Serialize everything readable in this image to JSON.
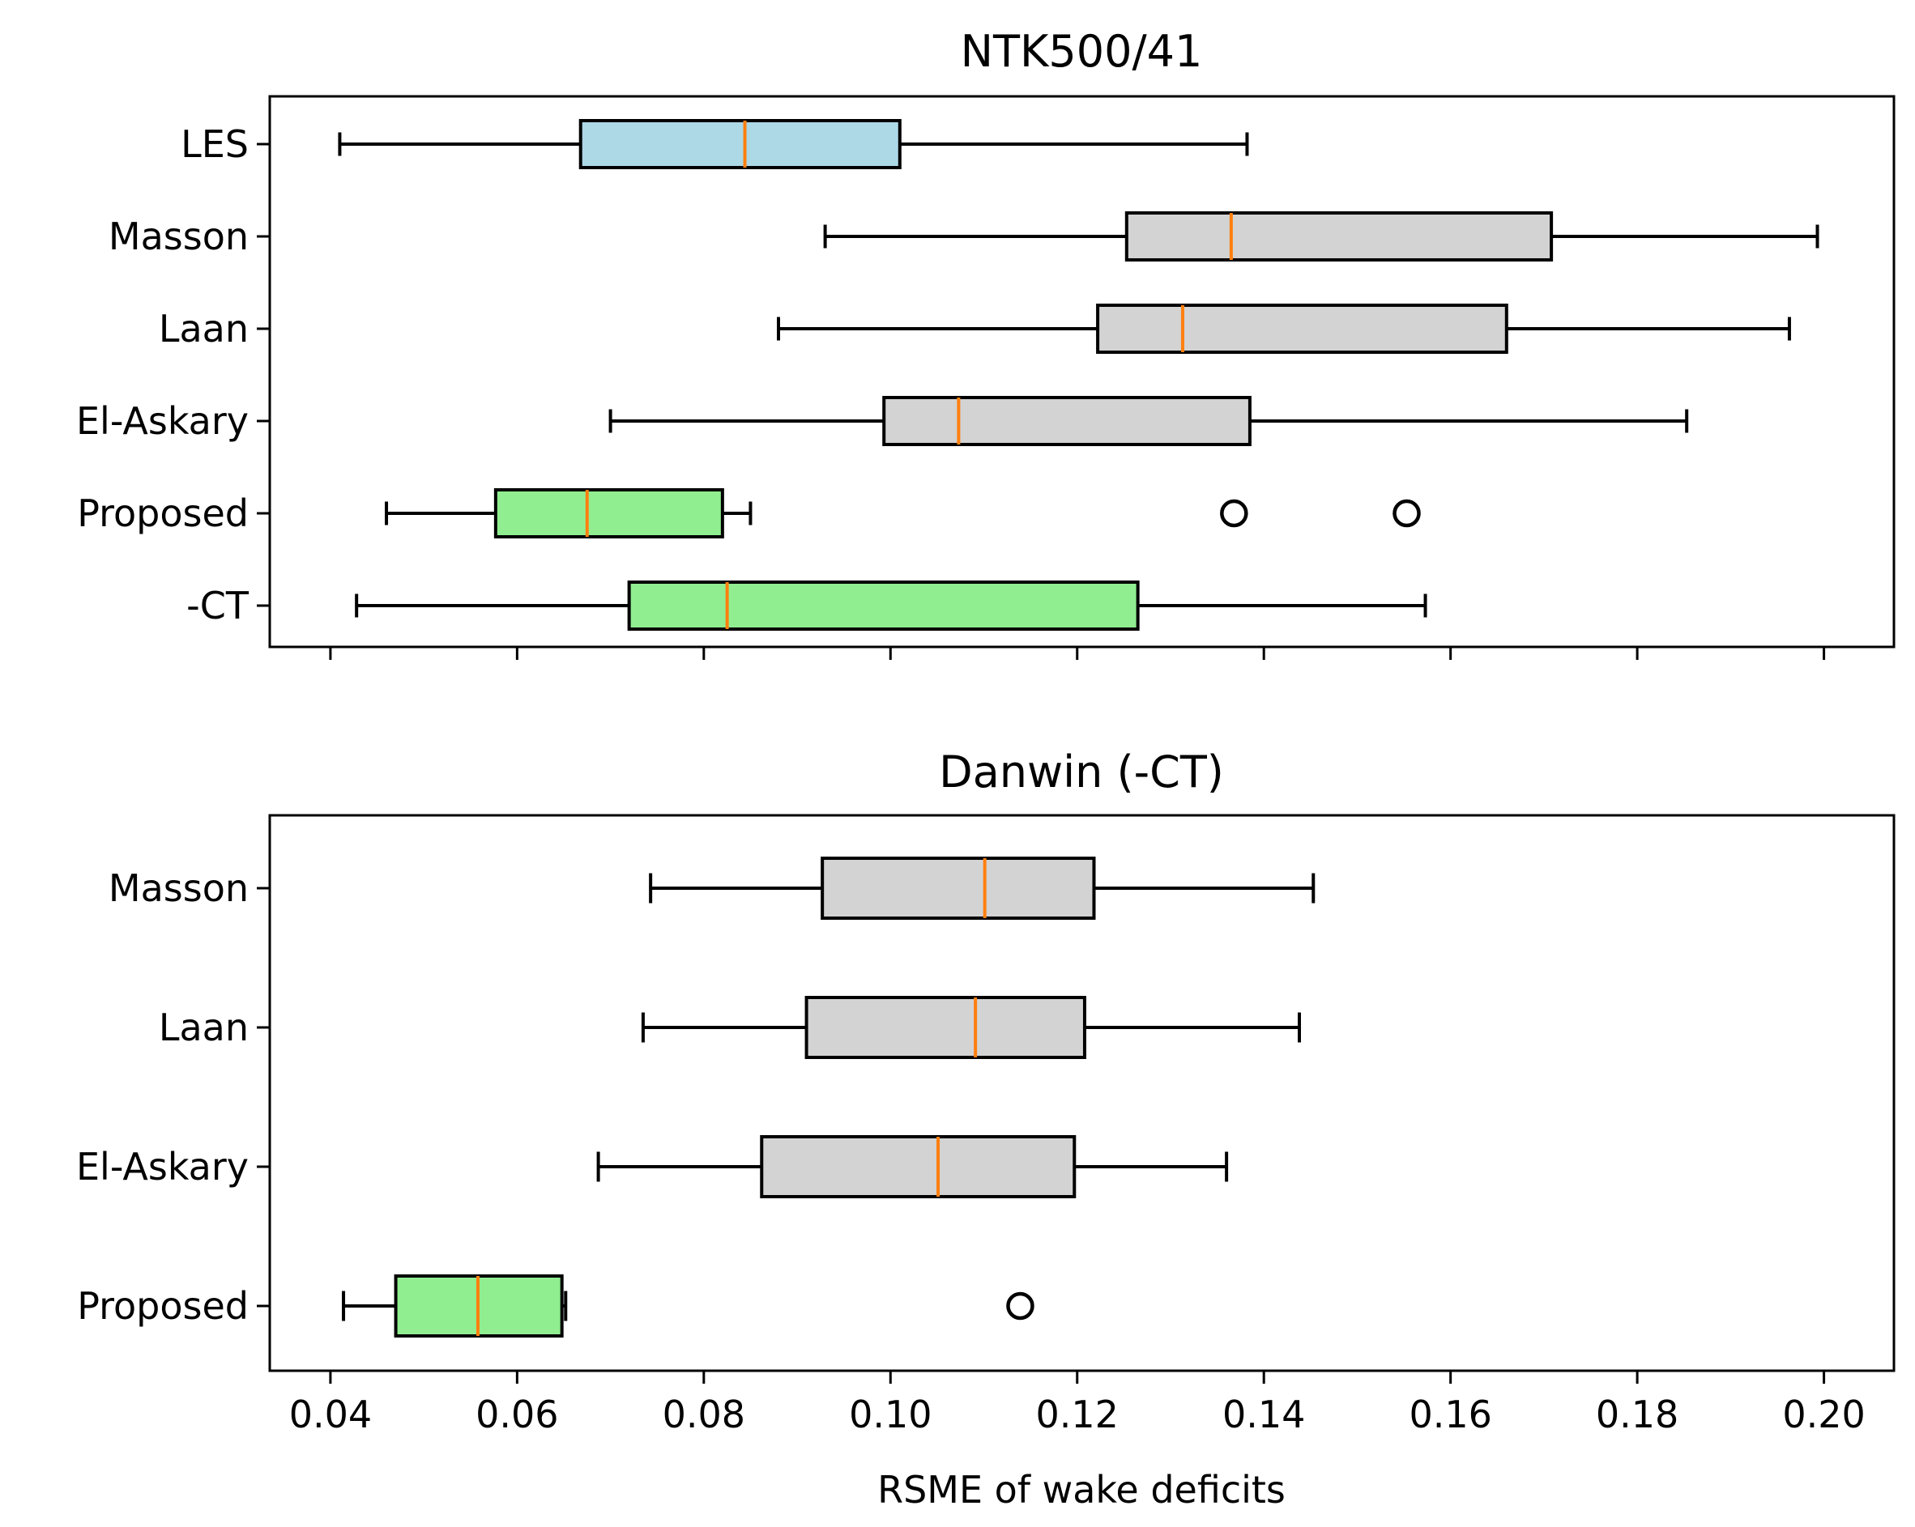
{
  "chart_data": [
    {
      "type": "boxplot",
      "orientation": "horizontal",
      "title": "NTK500/41",
      "xlim": [
        0.0335,
        0.2075
      ],
      "xticks": [
        0.04,
        0.06,
        0.08,
        0.1,
        0.12,
        0.14,
        0.16,
        0.18,
        0.2
      ],
      "xtick_labels": [],
      "xlabel": "",
      "categories": [
        "LES",
        "Masson",
        "Laan",
        "El-Askary",
        "Proposed",
        "-CT"
      ],
      "boxes": [
        {
          "label": "LES",
          "whisker_low": 0.041,
          "q1": 0.0668,
          "median": 0.0844,
          "q3": 0.101,
          "whisker_high": 0.1382,
          "outliers": [],
          "color": "#add8e6"
        },
        {
          "label": "Masson",
          "whisker_low": 0.093,
          "q1": 0.1253,
          "median": 0.1365,
          "q3": 0.1708,
          "whisker_high": 0.1993,
          "outliers": [],
          "color": "#d3d3d3"
        },
        {
          "label": "Laan",
          "whisker_low": 0.088,
          "q1": 0.1222,
          "median": 0.1313,
          "q3": 0.166,
          "whisker_high": 0.1963,
          "outliers": [],
          "color": "#d3d3d3"
        },
        {
          "label": "El-Askary",
          "whisker_low": 0.07,
          "q1": 0.0993,
          "median": 0.1073,
          "q3": 0.1385,
          "whisker_high": 0.1853,
          "outliers": [],
          "color": "#d3d3d3"
        },
        {
          "label": "Proposed",
          "whisker_low": 0.046,
          "q1": 0.0577,
          "median": 0.0675,
          "q3": 0.082,
          "whisker_high": 0.085,
          "outliers": [
            0.1368,
            0.1553
          ],
          "color": "#90ee90"
        },
        {
          "label": "-CT",
          "whisker_low": 0.0428,
          "q1": 0.072,
          "median": 0.0825,
          "q3": 0.1265,
          "whisker_high": 0.1573,
          "outliers": [],
          "color": "#90ee90"
        }
      ]
    },
    {
      "type": "boxplot",
      "orientation": "horizontal",
      "title": "Danwin (-CT)",
      "xlim": [
        0.0335,
        0.2075
      ],
      "xticks": [
        0.04,
        0.06,
        0.08,
        0.1,
        0.12,
        0.14,
        0.16,
        0.18,
        0.2
      ],
      "xtick_labels": [
        "0.04",
        "0.06",
        "0.08",
        "0.10",
        "0.12",
        "0.14",
        "0.16",
        "0.18",
        "0.20"
      ],
      "xlabel": "RSME of wake deficits",
      "categories": [
        "Masson",
        "Laan",
        "El-Askary",
        "Proposed"
      ],
      "boxes": [
        {
          "label": "Masson",
          "whisker_low": 0.0743,
          "q1": 0.0927,
          "median": 0.1101,
          "q3": 0.1218,
          "whisker_high": 0.1453,
          "outliers": [],
          "color": "#d3d3d3"
        },
        {
          "label": "Laan",
          "whisker_low": 0.0735,
          "q1": 0.091,
          "median": 0.1091,
          "q3": 0.1208,
          "whisker_high": 0.1438,
          "outliers": [],
          "color": "#d3d3d3"
        },
        {
          "label": "El-Askary",
          "whisker_low": 0.0687,
          "q1": 0.0862,
          "median": 0.1051,
          "q3": 0.1197,
          "whisker_high": 0.136,
          "outliers": [],
          "color": "#d3d3d3"
        },
        {
          "label": "Proposed",
          "whisker_low": 0.0414,
          "q1": 0.047,
          "median": 0.0558,
          "q3": 0.0648,
          "whisker_high": 0.0652,
          "outliers": [
            0.1139
          ],
          "color": "#90ee90"
        }
      ]
    }
  ],
  "colors": {
    "median": "#ff7f0e",
    "line": "#000000"
  }
}
